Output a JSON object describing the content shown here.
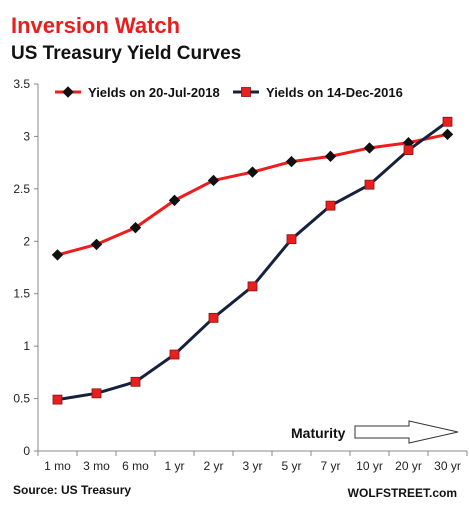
{
  "chart_data": {
    "type": "line",
    "title": "Inversion Watch",
    "subtitle": "US Treasury Yield Curves",
    "categories": [
      "1 mo",
      "3 mo",
      "6 mo",
      "1 yr",
      "2 yr",
      "3 yr",
      "5 yr",
      "7 yr",
      "10 yr",
      "20 yr",
      "30 yr"
    ],
    "series": [
      {
        "name": "Yields on 20-Jul-2018",
        "color": "#ee1c1c",
        "marker": "diamond",
        "values": [
          1.87,
          1.97,
          2.13,
          2.39,
          2.58,
          2.66,
          2.76,
          2.81,
          2.89,
          2.94,
          3.02
        ]
      },
      {
        "name": "Yields on 14-Dec-2016",
        "color": "#16213d",
        "marker": "square",
        "marker_color": "#e81f1f",
        "values": [
          0.49,
          0.55,
          0.66,
          0.92,
          1.27,
          1.57,
          2.02,
          2.34,
          2.54,
          2.87,
          3.14
        ]
      }
    ],
    "ylim": [
      0,
      3.5
    ],
    "yticks": [
      "0",
      "0.5",
      "1",
      "1.5",
      "2",
      "2.5",
      "3",
      "3.5"
    ],
    "grid": false,
    "legend_position": "top",
    "annotation": "Maturity",
    "source": "Source: US Treasury",
    "credit": "WOLFSTREET.com",
    "title_color": "#e8201b",
    "subtitle_color": "#111111"
  }
}
